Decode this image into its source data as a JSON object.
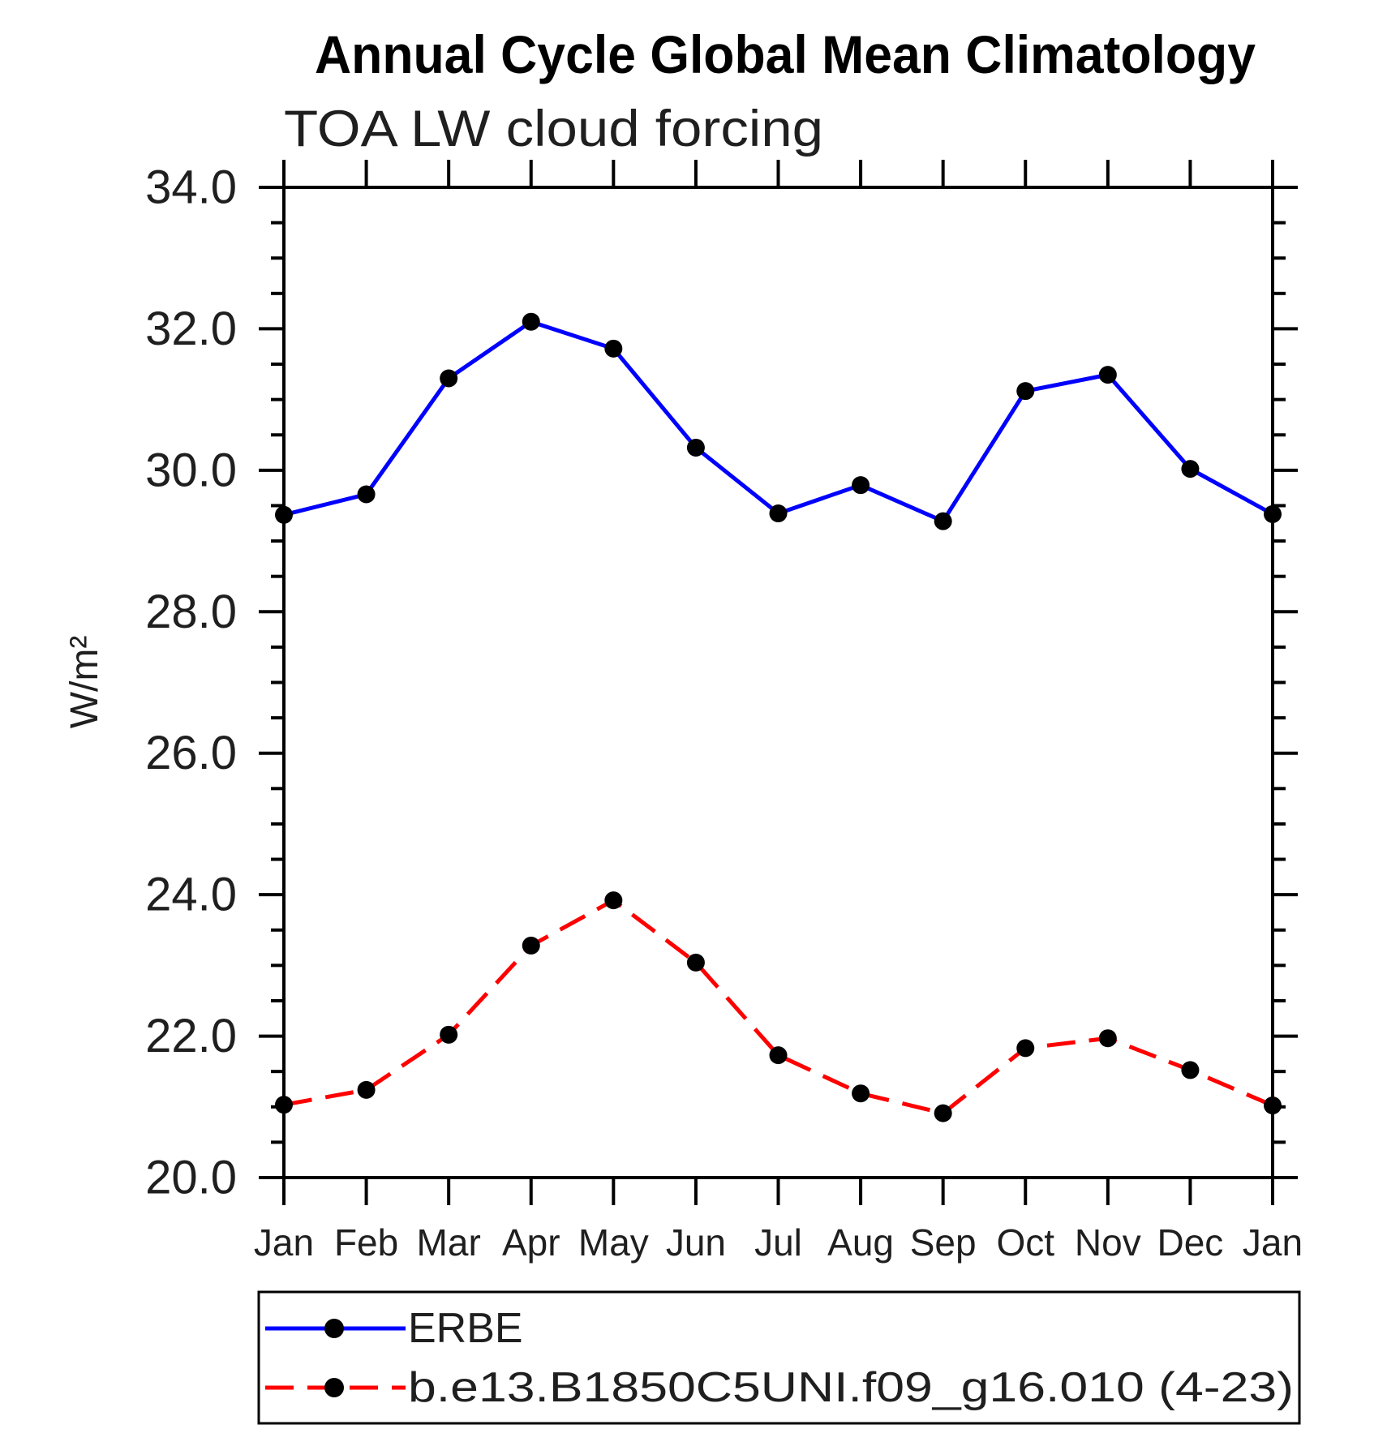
{
  "header": {
    "title": "Annual Cycle Global Mean Climatology",
    "subtitle": "TOA LW cloud forcing"
  },
  "axes": {
    "ylabel": "W/m²",
    "ytick_labels": [
      "34.0",
      "32.0",
      "30.0",
      "28.0",
      "26.0",
      "24.0",
      "22.0",
      "20.0"
    ],
    "ytick_values": [
      34,
      32,
      30,
      28,
      26,
      24,
      22,
      20
    ],
    "minor_tick_step": 0.5,
    "ylim": [
      20,
      34
    ]
  },
  "colors": {
    "background": "#ffffff",
    "axis": "#000000",
    "marker": "#000000",
    "erbe_line": "#0000ff",
    "model_line": "#ff0000"
  },
  "chart_data": {
    "type": "line",
    "title": "Annual Cycle Global Mean Climatology",
    "subtitle": "TOA LW cloud forcing",
    "xlabel": "",
    "ylabel": "W/m²",
    "ylim": [
      20,
      34
    ],
    "ytick_major_step": 2.0,
    "ytick_minor_step": 0.5,
    "grid": false,
    "legend_position": "bottom",
    "categories": [
      "Jan",
      "Feb",
      "Mar",
      "Apr",
      "May",
      "Jun",
      "Jul",
      "Aug",
      "Sep",
      "Oct",
      "Nov",
      "Dec",
      "Jan"
    ],
    "series": [
      {
        "name": "ERBE",
        "color": "#0000ff",
        "style": "solid",
        "marker": "circle",
        "marker_color": "#000000",
        "values": [
          29.37,
          29.66,
          31.3,
          32.1,
          31.72,
          30.32,
          29.39,
          29.79,
          29.28,
          31.12,
          31.35,
          30.02,
          29.38
        ]
      },
      {
        "name": "b.e13.B1850C5UNI.f09_g16.010 (4-23)",
        "color": "#ff0000",
        "style": "dashed",
        "marker": "circle",
        "marker_color": "#000000",
        "values": [
          21.03,
          21.24,
          22.02,
          23.28,
          23.92,
          23.04,
          21.73,
          21.19,
          20.91,
          21.83,
          21.97,
          21.52,
          21.02
        ]
      }
    ]
  }
}
